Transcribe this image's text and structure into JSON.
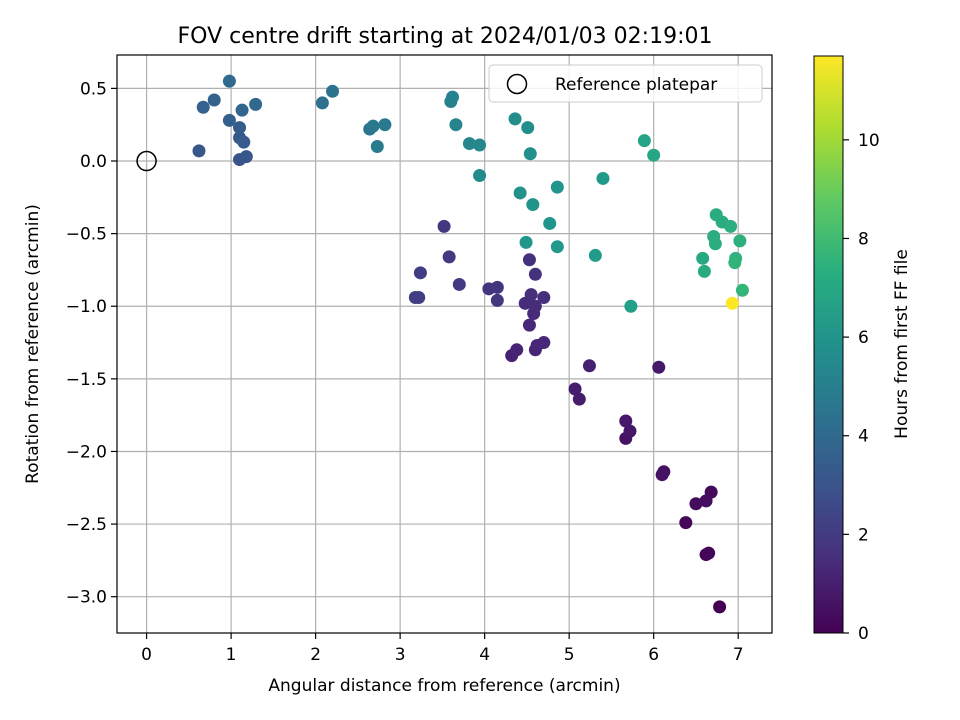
{
  "chart_data": {
    "type": "scatter",
    "title": "FOV centre drift starting at 2024/01/03 02:19:01",
    "xlabel": "Angular distance from reference (arcmin)",
    "ylabel": "Rotation from reference (arcmin)",
    "xlim": [
      -0.35,
      7.4
    ],
    "ylim": [
      -3.25,
      0.73
    ],
    "x_ticks": [
      0,
      1,
      2,
      3,
      4,
      5,
      6,
      7
    ],
    "y_ticks": [
      0.5,
      0.0,
      -0.5,
      -1.0,
      -1.5,
      -2.0,
      -2.5,
      -3.0
    ],
    "x_tick_labels": [
      "0",
      "1",
      "2",
      "3",
      "4",
      "5",
      "6",
      "7"
    ],
    "y_tick_labels": [
      "0.5",
      "0.0",
      "−0.5",
      "−1.0",
      "−1.5",
      "−2.0",
      "−2.5",
      "−3.0"
    ],
    "grid": true,
    "legend": {
      "position": "top-right",
      "entries": [
        "Reference platepar"
      ]
    },
    "reference_point": {
      "x": 0,
      "y": 0,
      "label": "Reference platepar"
    },
    "colorbar": {
      "label": "Hours from first FF file",
      "colormap": "viridis",
      "min": 0,
      "max": 11.7,
      "ticks": [
        0,
        2,
        4,
        6,
        8,
        10
      ],
      "tick_labels": [
        "0",
        "2",
        "4",
        "6",
        "8",
        "10"
      ]
    },
    "series": [
      {
        "points": [
          {
            "x": 6.78,
            "y": -3.07,
            "c": 0.0
          },
          {
            "x": 6.62,
            "y": -2.71,
            "c": 0.1
          },
          {
            "x": 6.65,
            "y": -2.7,
            "c": 0.15
          },
          {
            "x": 6.38,
            "y": -2.49,
            "c": 0.2
          },
          {
            "x": 6.68,
            "y": -2.28,
            "c": 0.3
          },
          {
            "x": 6.5,
            "y": -2.36,
            "c": 0.35
          },
          {
            "x": 6.62,
            "y": -2.34,
            "c": 0.4
          },
          {
            "x": 6.12,
            "y": -2.14,
            "c": 0.5
          },
          {
            "x": 6.1,
            "y": -2.16,
            "c": 0.55
          },
          {
            "x": 5.67,
            "y": -1.91,
            "c": 0.6
          },
          {
            "x": 5.72,
            "y": -1.86,
            "c": 0.7
          },
          {
            "x": 5.67,
            "y": -1.79,
            "c": 0.75
          },
          {
            "x": 6.06,
            "y": -1.42,
            "c": 0.8
          },
          {
            "x": 5.12,
            "y": -1.64,
            "c": 0.9
          },
          {
            "x": 5.07,
            "y": -1.57,
            "c": 0.95
          },
          {
            "x": 5.24,
            "y": -1.41,
            "c": 1.0
          },
          {
            "x": 4.32,
            "y": -1.34,
            "c": 1.1
          },
          {
            "x": 4.38,
            "y": -1.3,
            "c": 1.15
          },
          {
            "x": 4.6,
            "y": -1.3,
            "c": 1.2
          },
          {
            "x": 4.62,
            "y": -1.27,
            "c": 1.25
          },
          {
            "x": 4.7,
            "y": -1.25,
            "c": 1.3
          },
          {
            "x": 4.53,
            "y": -1.13,
            "c": 1.35
          },
          {
            "x": 4.58,
            "y": -1.05,
            "c": 1.4
          },
          {
            "x": 4.6,
            "y": -1.0,
            "c": 1.45
          },
          {
            "x": 4.48,
            "y": -0.98,
            "c": 1.5
          },
          {
            "x": 4.55,
            "y": -0.92,
            "c": 1.55
          },
          {
            "x": 4.7,
            "y": -0.94,
            "c": 1.6
          },
          {
            "x": 4.53,
            "y": -0.68,
            "c": 1.65
          },
          {
            "x": 4.6,
            "y": -0.78,
            "c": 1.7
          },
          {
            "x": 4.05,
            "y": -0.88,
            "c": 1.75
          },
          {
            "x": 4.15,
            "y": -0.87,
            "c": 1.8
          },
          {
            "x": 4.15,
            "y": -0.96,
            "c": 1.85
          },
          {
            "x": 3.52,
            "y": -0.45,
            "c": 1.9
          },
          {
            "x": 3.58,
            "y": -0.66,
            "c": 1.95
          },
          {
            "x": 3.7,
            "y": -0.85,
            "c": 2.0
          },
          {
            "x": 3.24,
            "y": -0.77,
            "c": 2.05
          },
          {
            "x": 3.18,
            "y": -0.94,
            "c": 2.1
          },
          {
            "x": 3.22,
            "y": -0.94,
            "c": 2.15
          },
          {
            "x": 1.1,
            "y": 0.01,
            "c": 3.0
          },
          {
            "x": 1.18,
            "y": 0.03,
            "c": 3.1
          },
          {
            "x": 0.62,
            "y": 0.07,
            "c": 3.2
          },
          {
            "x": 1.1,
            "y": 0.16,
            "c": 3.3
          },
          {
            "x": 1.15,
            "y": 0.13,
            "c": 3.35
          },
          {
            "x": 1.1,
            "y": 0.23,
            "c": 3.4
          },
          {
            "x": 0.98,
            "y": 0.28,
            "c": 3.5
          },
          {
            "x": 0.67,
            "y": 0.37,
            "c": 3.6
          },
          {
            "x": 0.8,
            "y": 0.42,
            "c": 3.7
          },
          {
            "x": 1.13,
            "y": 0.35,
            "c": 3.8
          },
          {
            "x": 1.29,
            "y": 0.39,
            "c": 3.9
          },
          {
            "x": 0.98,
            "y": 0.55,
            "c": 4.0
          },
          {
            "x": 2.08,
            "y": 0.4,
            "c": 4.3
          },
          {
            "x": 2.2,
            "y": 0.48,
            "c": 4.4
          },
          {
            "x": 2.64,
            "y": 0.22,
            "c": 4.6
          },
          {
            "x": 2.68,
            "y": 0.24,
            "c": 4.7
          },
          {
            "x": 2.82,
            "y": 0.25,
            "c": 4.8
          },
          {
            "x": 2.73,
            "y": 0.1,
            "c": 4.9
          },
          {
            "x": 3.6,
            "y": 0.41,
            "c": 5.1
          },
          {
            "x": 3.62,
            "y": 0.44,
            "c": 5.2
          },
          {
            "x": 3.66,
            "y": 0.25,
            "c": 5.3
          },
          {
            "x": 3.82,
            "y": 0.12,
            "c": 5.4
          },
          {
            "x": 3.94,
            "y": 0.11,
            "c": 5.5
          },
          {
            "x": 3.94,
            "y": -0.1,
            "c": 5.6
          },
          {
            "x": 4.36,
            "y": 0.29,
            "c": 5.7
          },
          {
            "x": 4.51,
            "y": 0.23,
            "c": 5.8
          },
          {
            "x": 4.54,
            "y": 0.05,
            "c": 5.9
          },
          {
            "x": 4.42,
            "y": -0.22,
            "c": 5.95
          },
          {
            "x": 4.57,
            "y": -0.3,
            "c": 6.0
          },
          {
            "x": 4.86,
            "y": -0.18,
            "c": 6.05
          },
          {
            "x": 4.77,
            "y": -0.43,
            "c": 6.1
          },
          {
            "x": 4.49,
            "y": -0.56,
            "c": 6.15
          },
          {
            "x": 4.86,
            "y": -0.59,
            "c": 6.2
          },
          {
            "x": 5.4,
            "y": -0.12,
            "c": 6.3
          },
          {
            "x": 5.31,
            "y": -0.65,
            "c": 6.4
          },
          {
            "x": 5.73,
            "y": -1.0,
            "c": 6.6
          },
          {
            "x": 5.89,
            "y": 0.14,
            "c": 6.8
          },
          {
            "x": 6.0,
            "y": 0.04,
            "c": 6.9
          },
          {
            "x": 6.58,
            "y": -0.67,
            "c": 7.0
          },
          {
            "x": 6.6,
            "y": -0.76,
            "c": 7.1
          },
          {
            "x": 6.74,
            "y": -0.37,
            "c": 7.15
          },
          {
            "x": 6.81,
            "y": -0.42,
            "c": 7.2
          },
          {
            "x": 6.71,
            "y": -0.52,
            "c": 7.25
          },
          {
            "x": 6.73,
            "y": -0.57,
            "c": 7.3
          },
          {
            "x": 6.91,
            "y": -0.45,
            "c": 7.35
          },
          {
            "x": 7.02,
            "y": -0.55,
            "c": 7.4
          },
          {
            "x": 6.97,
            "y": -0.67,
            "c": 7.5
          },
          {
            "x": 6.96,
            "y": -0.7,
            "c": 7.6
          },
          {
            "x": 7.05,
            "y": -0.89,
            "c": 7.7
          },
          {
            "x": 6.93,
            "y": -0.98,
            "c": 11.7
          }
        ]
      }
    ]
  }
}
